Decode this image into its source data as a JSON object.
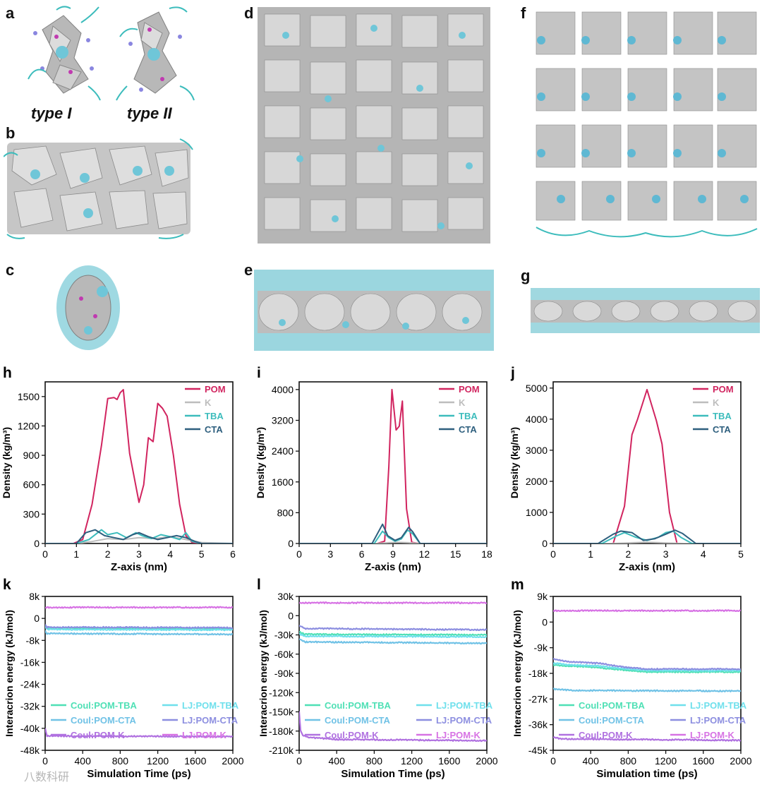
{
  "panel_labels": {
    "a": "a",
    "b": "b",
    "c": "c",
    "d": "d",
    "e": "e",
    "f": "f",
    "g": "g",
    "h": "h",
    "i": "i",
    "j": "j",
    "k": "k",
    "l": "l",
    "m": "m"
  },
  "type_labels": {
    "type1": "type I",
    "type2": "type II"
  },
  "colors": {
    "POM": "#d1245f",
    "K": "#bdbdbd",
    "TBA": "#3cbcbc",
    "CTA": "#2e5f7e",
    "coul_tba": "#4fe0b5",
    "lj_tba": "#6fe0ec",
    "coul_cta": "#70c2e6",
    "lj_cta": "#8c8ee0",
    "coul_k": "#b071e0",
    "lj_k": "#d772e4"
  },
  "watermark": "八数科研",
  "chart_data": [
    {
      "id": "h",
      "type": "line",
      "xlabel": "Z-axis (nm)",
      "ylabel": "Density (kg/m³)",
      "xlim": [
        0,
        6
      ],
      "ylim": [
        0,
        1650
      ],
      "xticks": [
        0,
        1,
        2,
        3,
        4,
        5,
        6
      ],
      "yticks": [
        0,
        300,
        600,
        900,
        1200,
        1500
      ],
      "legend": [
        "POM",
        "K",
        "TBA",
        "CTA"
      ],
      "series": [
        {
          "name": "POM",
          "color": "#d1245f",
          "x": [
            0,
            0.9,
            1.2,
            1.5,
            1.8,
            2.0,
            2.2,
            2.3,
            2.4,
            2.5,
            2.7,
            3.0,
            3.15,
            3.3,
            3.45,
            3.6,
            3.75,
            3.9,
            4.1,
            4.3,
            4.5,
            4.7,
            5,
            6
          ],
          "y": [
            0,
            0,
            40,
            400,
            1000,
            1480,
            1490,
            1470,
            1540,
            1570,
            920,
            420,
            600,
            1080,
            1040,
            1430,
            1380,
            1300,
            900,
            400,
            80,
            10,
            0,
            0
          ]
        },
        {
          "name": "K",
          "color": "#bdbdbd",
          "x": [
            0,
            1,
            1.5,
            2,
            2.5,
            3,
            3.5,
            4,
            4.5,
            5,
            6
          ],
          "y": [
            0,
            0,
            20,
            50,
            40,
            60,
            50,
            70,
            40,
            10,
            0
          ]
        },
        {
          "name": "TBA",
          "color": "#3cbcbc",
          "x": [
            0,
            1,
            1.4,
            1.8,
            2.0,
            2.3,
            2.6,
            2.9,
            3.1,
            3.4,
            3.7,
            4.0,
            4.3,
            4.5,
            4.7,
            5,
            6
          ],
          "y": [
            0,
            0,
            40,
            140,
            90,
            110,
            60,
            110,
            80,
            50,
            90,
            70,
            40,
            110,
            20,
            0,
            0
          ]
        },
        {
          "name": "CTA",
          "color": "#2e5f7e",
          "x": [
            0,
            1,
            1.3,
            1.6,
            1.9,
            2.2,
            2.5,
            2.8,
            3.0,
            3.3,
            3.6,
            3.9,
            4.2,
            4.5,
            4.8,
            5,
            6
          ],
          "y": [
            0,
            0,
            110,
            140,
            80,
            60,
            40,
            90,
            110,
            70,
            40,
            60,
            80,
            60,
            20,
            0,
            0
          ]
        }
      ]
    },
    {
      "id": "i",
      "type": "line",
      "xlabel": "Z-axis (nm)",
      "ylabel": "Density (kg/m³)",
      "xlim": [
        0,
        18
      ],
      "ylim": [
        0,
        4200
      ],
      "xticks": [
        0,
        3,
        6,
        9,
        12,
        15,
        18
      ],
      "yticks": [
        0,
        800,
        1600,
        2400,
        3200,
        4000
      ],
      "legend": [
        "POM",
        "K",
        "TBA",
        "CTA"
      ],
      "series": [
        {
          "name": "POM",
          "color": "#d1245f",
          "x": [
            0,
            7.5,
            8.2,
            8.6,
            8.9,
            9.3,
            9.6,
            9.9,
            10.3,
            10.8,
            11.5,
            18
          ],
          "y": [
            0,
            0,
            60,
            2000,
            4000,
            2950,
            3050,
            3700,
            900,
            30,
            0,
            0
          ]
        },
        {
          "name": "K",
          "color": "#bdbdbd",
          "x": [
            0,
            7.5,
            8.5,
            9.5,
            10.5,
            11.5,
            18
          ],
          "y": [
            0,
            0,
            20,
            30,
            20,
            0,
            0
          ]
        },
        {
          "name": "TBA",
          "color": "#3cbcbc",
          "x": [
            0,
            7.2,
            8.0,
            8.6,
            9.2,
            9.8,
            10.4,
            10.9,
            11.6,
            18
          ],
          "y": [
            0,
            0,
            320,
            150,
            60,
            120,
            350,
            250,
            0,
            0
          ]
        },
        {
          "name": "CTA",
          "color": "#2e5f7e",
          "x": [
            0,
            7.0,
            8.0,
            8.5,
            9.2,
            9.8,
            10.5,
            10.9,
            11.6,
            18
          ],
          "y": [
            0,
            0,
            500,
            200,
            80,
            150,
            420,
            300,
            0,
            0
          ]
        }
      ]
    },
    {
      "id": "j",
      "type": "line",
      "xlabel": "Z-axis (nm)",
      "ylabel": "Density (kg/m³)",
      "xlim": [
        0,
        5
      ],
      "ylim": [
        0,
        5200
      ],
      "xticks": [
        0,
        1,
        2,
        3,
        4,
        5
      ],
      "yticks": [
        0,
        1000,
        2000,
        3000,
        4000,
        5000
      ],
      "legend": [
        "POM",
        "K",
        "TBA",
        "CTA"
      ],
      "series": [
        {
          "name": "POM",
          "color": "#d1245f",
          "x": [
            0,
            1.6,
            1.9,
            2.1,
            2.25,
            2.5,
            2.75,
            2.9,
            3.1,
            3.3,
            5
          ],
          "y": [
            0,
            0,
            1200,
            3500,
            4000,
            4950,
            3950,
            3200,
            1000,
            0,
            0
          ]
        },
        {
          "name": "K",
          "color": "#bdbdbd",
          "x": [
            0,
            1.5,
            2.5,
            3.5,
            5
          ],
          "y": [
            0,
            0,
            40,
            0,
            0
          ]
        },
        {
          "name": "TBA",
          "color": "#3cbcbc",
          "x": [
            0,
            1.3,
            1.7,
            1.9,
            2.2,
            2.5,
            2.8,
            3.0,
            3.2,
            3.4,
            3.7,
            5
          ],
          "y": [
            0,
            0,
            250,
            350,
            200,
            100,
            200,
            350,
            400,
            200,
            0,
            0
          ]
        },
        {
          "name": "CTA",
          "color": "#2e5f7e",
          "x": [
            0,
            1.2,
            1.6,
            1.8,
            2.1,
            2.4,
            2.7,
            3.0,
            3.25,
            3.45,
            3.8,
            5
          ],
          "y": [
            0,
            0,
            300,
            400,
            350,
            100,
            150,
            300,
            430,
            320,
            0,
            0
          ]
        }
      ]
    },
    {
      "id": "k",
      "type": "line",
      "xlabel": "Simulation Time (ps)",
      "ylabel": "Interacrion energy (kJ/mol)",
      "xlim": [
        0,
        2000
      ],
      "ylim": [
        -48000,
        8000
      ],
      "xticks": [
        0,
        400,
        800,
        1200,
        1600,
        2000
      ],
      "yticks": [
        8000,
        0,
        -8000,
        -16000,
        -24000,
        -32000,
        -40000,
        -48000
      ],
      "yticklabels": [
        "8k",
        "0",
        "-8k",
        "-16k",
        "-24k",
        "-32k",
        "-40k",
        "-48k"
      ],
      "legend": [
        "Coul:POM-TBA",
        "LJ:POM-TBA",
        "Coul:POM-CTA",
        "LJ:POM-CTA",
        "Coul:POM-K",
        "LJ:POM-K"
      ],
      "series": [
        {
          "name": "Coul:POM-TBA",
          "color": "#4fe0b5",
          "x": [
            0,
            20,
            2000
          ],
          "y": [
            -2500,
            -3500,
            -3800
          ]
        },
        {
          "name": "LJ:POM-TBA",
          "color": "#6fe0ec",
          "x": [
            0,
            20,
            2000
          ],
          "y": [
            -3000,
            -4000,
            -4200
          ]
        },
        {
          "name": "Coul:POM-CTA",
          "color": "#70c2e6",
          "x": [
            0,
            20,
            2000
          ],
          "y": [
            -4500,
            -5500,
            -5800
          ]
        },
        {
          "name": "LJ:POM-CTA",
          "color": "#8c8ee0",
          "x": [
            0,
            20,
            2000
          ],
          "y": [
            -2300,
            -3200,
            -3400
          ]
        },
        {
          "name": "Coul:POM-K",
          "color": "#b071e0",
          "x": [
            0,
            20,
            2000
          ],
          "y": [
            -40000,
            -42800,
            -43000
          ]
        },
        {
          "name": "LJ:POM-K",
          "color": "#d772e4",
          "x": [
            0,
            2000
          ],
          "y": [
            4000,
            4000
          ]
        }
      ]
    },
    {
      "id": "l",
      "type": "line",
      "xlabel": "Simulation Time (ps)",
      "ylabel": "Interacrion energy (kJ/mol)",
      "xlim": [
        0,
        2000
      ],
      "ylim": [
        -210000,
        30000
      ],
      "xticks": [
        0,
        400,
        800,
        1200,
        1600,
        2000
      ],
      "yticks": [
        30000,
        0,
        -30000,
        -60000,
        -90000,
        -120000,
        -150000,
        -180000,
        -210000
      ],
      "yticklabels": [
        "30k",
        "0",
        "-30k",
        "-60k",
        "-90k",
        "-120k",
        "-150k",
        "-180k",
        "-210k"
      ],
      "legend": [
        "Coul:POM-TBA",
        "LJ:POM-TBA",
        "Coul:POM-CTA",
        "LJ:POM-CTA",
        "Coul:POM-K",
        "LJ:POM-K"
      ],
      "series": [
        {
          "name": "Coul:POM-TBA",
          "color": "#4fe0b5",
          "x": [
            0,
            60,
            2000
          ],
          "y": [
            -25000,
            -29000,
            -30000
          ]
        },
        {
          "name": "LJ:POM-TBA",
          "color": "#6fe0ec",
          "x": [
            0,
            60,
            2000
          ],
          "y": [
            -28000,
            -32000,
            -33000
          ]
        },
        {
          "name": "Coul:POM-CTA",
          "color": "#70c2e6",
          "x": [
            0,
            60,
            2000
          ],
          "y": [
            -36000,
            -41000,
            -43000
          ]
        },
        {
          "name": "LJ:POM-CTA",
          "color": "#8c8ee0",
          "x": [
            0,
            60,
            2000
          ],
          "y": [
            -15000,
            -20000,
            -22000
          ]
        },
        {
          "name": "Coul:POM-K",
          "color": "#b071e0",
          "x": [
            0,
            15,
            40,
            100,
            400,
            2000
          ],
          "y": [
            -150000,
            -180000,
            -186000,
            -190000,
            -193000,
            -195000
          ]
        },
        {
          "name": "LJ:POM-K",
          "color": "#d772e4",
          "x": [
            0,
            2000
          ],
          "y": [
            20000,
            20000
          ]
        }
      ]
    },
    {
      "id": "m",
      "type": "line",
      "xlabel": "Simulation time (ps)",
      "ylabel": "Interacrion energy (kJ/mol)",
      "xlim": [
        0,
        2000
      ],
      "ylim": [
        -45000,
        9000
      ],
      "xticks": [
        0,
        400,
        800,
        1200,
        1600,
        2000
      ],
      "yticks": [
        9000,
        0,
        -9000,
        -18000,
        -27000,
        -36000,
        -45000
      ],
      "yticklabels": [
        "9k",
        "0",
        "-9k",
        "-18k",
        "-27k",
        "-36k",
        "-45k"
      ],
      "legend": [
        "Coul:POM-TBA",
        "LJ:POM-TBA",
        "Coul:POM-CTA",
        "LJ:POM-CTA",
        "Coul:POM-K",
        "LJ:POM-K"
      ],
      "series": [
        {
          "name": "Coul:POM-TBA",
          "color": "#4fe0b5",
          "x": [
            0,
            200,
            500,
            800,
            1000,
            2000
          ],
          "y": [
            -15000,
            -15500,
            -16000,
            -17000,
            -17500,
            -17500
          ]
        },
        {
          "name": "LJ:POM-TBA",
          "color": "#6fe0ec",
          "x": [
            0,
            200,
            500,
            800,
            1000,
            2000
          ],
          "y": [
            -14500,
            -15000,
            -15500,
            -16500,
            -17000,
            -17000
          ]
        },
        {
          "name": "Coul:POM-CTA",
          "color": "#70c2e6",
          "x": [
            0,
            200,
            2000
          ],
          "y": [
            -23500,
            -24000,
            -24200
          ]
        },
        {
          "name": "LJ:POM-CTA",
          "color": "#8c8ee0",
          "x": [
            0,
            200,
            500,
            800,
            1000,
            2000
          ],
          "y": [
            -13000,
            -14000,
            -14500,
            -16000,
            -16500,
            -16500
          ]
        },
        {
          "name": "Coul:POM-K",
          "color": "#b071e0",
          "x": [
            0,
            100,
            2000
          ],
          "y": [
            -40500,
            -41000,
            -41500
          ]
        },
        {
          "name": "LJ:POM-K",
          "color": "#d772e4",
          "x": [
            0,
            2000
          ],
          "y": [
            4000,
            4000
          ]
        }
      ]
    }
  ]
}
